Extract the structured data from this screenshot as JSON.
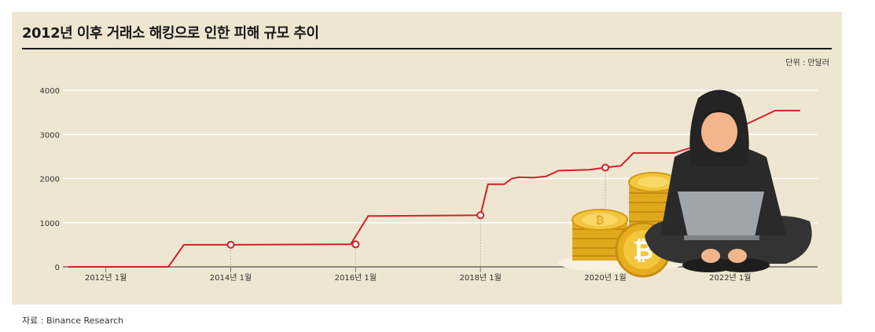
{
  "title": "2012년 이후 거래소 해킹으로 인한 피해 규모 추이",
  "unit_label": "단위 : 만달러",
  "source": "자료 : Binance Research",
  "colors": {
    "panel": "#efe6d2",
    "line": "#d0212a",
    "grid": "#ffffff",
    "title_rule": "#1a1a1a"
  },
  "illustration": {
    "name": "hacker-with-bitcoins",
    "icons": [
      "hooded-hacker-icon",
      "laptop-icon",
      "bitcoin-coin-stack-icon"
    ]
  },
  "chart_data": {
    "type": "line",
    "title": "2012년 이후 거래소 해킹으로 인한 피해 규모 추이",
    "ylabel": "",
    "xlabel": "",
    "ylim": [
      0,
      4000
    ],
    "yticks": [
      0,
      1000,
      2000,
      3000,
      4000
    ],
    "xlim": [
      2011.4,
      2023.4
    ],
    "xticks": [
      {
        "value": 2012.0,
        "label": "2012년 1월"
      },
      {
        "value": 2014.0,
        "label": "2014년 1월"
      },
      {
        "value": 2016.0,
        "label": "2016년 1월"
      },
      {
        "value": 2018.0,
        "label": "2018년 1월"
      },
      {
        "value": 2020.0,
        "label": "2020년 1월"
      },
      {
        "value": 2022.0,
        "label": "2022년 1월"
      }
    ],
    "grid": true,
    "series": [
      {
        "color": "#d0212a",
        "points": [
          [
            2011.4,
            0
          ],
          [
            2013.0,
            0
          ],
          [
            2013.25,
            500
          ],
          [
            2013.6,
            500
          ],
          [
            2014.0,
            500
          ],
          [
            2015.7,
            510
          ],
          [
            2015.92,
            510
          ],
          [
            2016.2,
            1150
          ],
          [
            2018.0,
            1170
          ],
          [
            2018.12,
            1870
          ],
          [
            2018.38,
            1870
          ],
          [
            2018.5,
            2000
          ],
          [
            2018.62,
            2030
          ],
          [
            2018.85,
            2020
          ],
          [
            2019.05,
            2050
          ],
          [
            2019.25,
            2180
          ],
          [
            2019.75,
            2200
          ],
          [
            2020.0,
            2250
          ],
          [
            2020.25,
            2290
          ],
          [
            2020.45,
            2580
          ],
          [
            2021.1,
            2580
          ],
          [
            2021.35,
            2690
          ],
          [
            2022.0,
            3060
          ],
          [
            2022.72,
            3540
          ],
          [
            2023.12,
            3540
          ]
        ],
        "markers": [
          [
            2014.0,
            500
          ],
          [
            2016.0,
            510
          ],
          [
            2018.0,
            1170
          ],
          [
            2020.0,
            2250
          ],
          [
            2022.0,
            3060
          ]
        ]
      }
    ]
  }
}
